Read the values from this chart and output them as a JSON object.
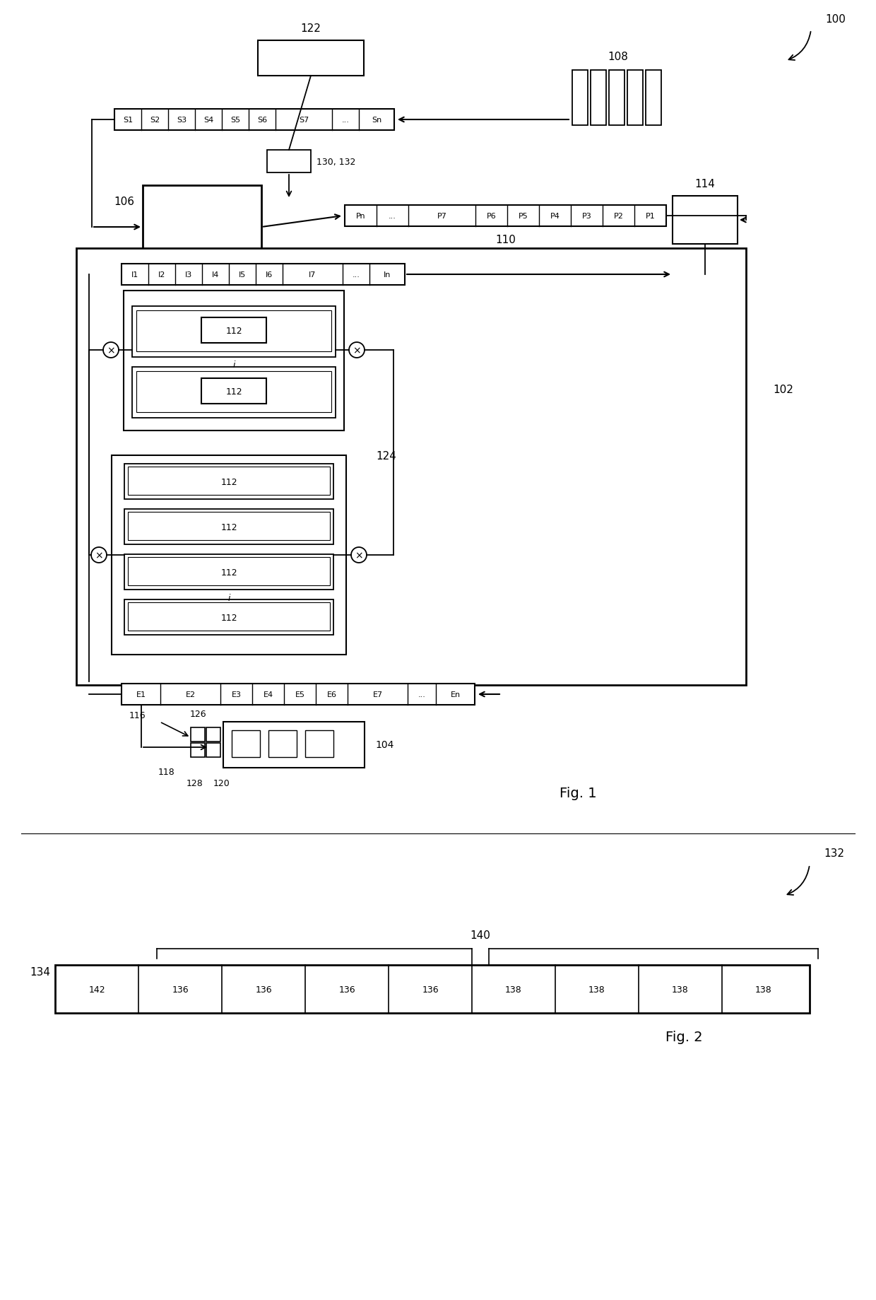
{
  "bg_color": "#ffffff",
  "lc": "#000000",
  "fig1_label": "Fig. 1",
  "fig2_label": "Fig. 2",
  "ref_100": "100",
  "ref_102": "102",
  "ref_104": "104",
  "ref_106": "106",
  "ref_108": "108",
  "ref_110": "110",
  "ref_112": "112",
  "ref_114": "114",
  "ref_116": "116",
  "ref_118": "118",
  "ref_120": "120",
  "ref_122": "122",
  "ref_124": "124",
  "ref_126": "126",
  "ref_128": "128",
  "ref_130_132": "130, 132",
  "ref_132": "132",
  "ref_134": "134",
  "ref_136": "136",
  "ref_138": "138",
  "ref_140": "140",
  "ref_142": "142",
  "s_cells": [
    [
      "S1",
      38
    ],
    [
      "S2",
      38
    ],
    [
      "S3",
      38
    ],
    [
      "S4",
      38
    ],
    [
      "S5",
      38
    ],
    [
      "S6",
      38
    ],
    [
      "S7",
      80
    ],
    [
      "...",
      38
    ],
    [
      "Sn",
      50
    ]
  ],
  "p_cells": [
    [
      "Pn",
      45
    ],
    [
      "...",
      45
    ],
    [
      "P7",
      95
    ],
    [
      "P6",
      45
    ],
    [
      "P5",
      45
    ],
    [
      "P4",
      45
    ],
    [
      "P3",
      45
    ],
    [
      "P2",
      45
    ],
    [
      "P1",
      45
    ]
  ],
  "i_cells": [
    [
      "I1",
      38
    ],
    [
      "I2",
      38
    ],
    [
      "I3",
      38
    ],
    [
      "I4",
      38
    ],
    [
      "I5",
      38
    ],
    [
      "I6",
      38
    ],
    [
      "I7",
      85
    ],
    [
      "...",
      38
    ],
    [
      "In",
      50
    ]
  ],
  "e_cells": [
    [
      "E1",
      55
    ],
    [
      "E2",
      85
    ],
    [
      "E3",
      45
    ],
    [
      "E4",
      45
    ],
    [
      "E5",
      45
    ],
    [
      "E6",
      45
    ],
    [
      "E7",
      85
    ],
    [
      "...",
      40
    ],
    [
      "En",
      55
    ]
  ],
  "fig2_cells": [
    "142",
    "136",
    "136",
    "136",
    "136",
    "138",
    "138",
    "138",
    "138"
  ]
}
